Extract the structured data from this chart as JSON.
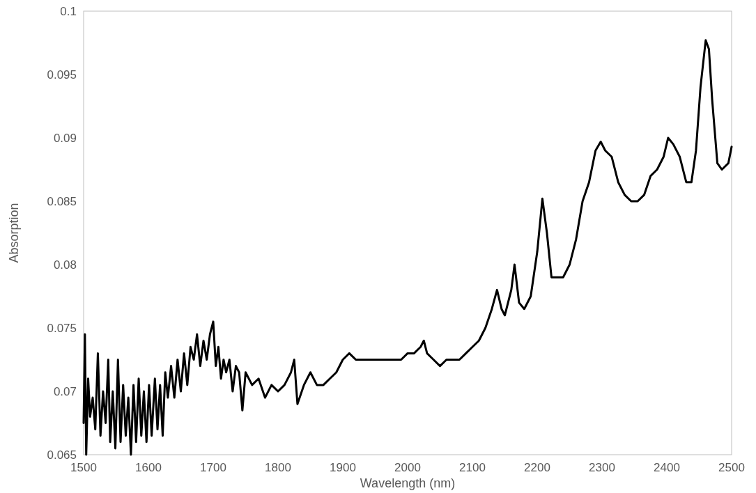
{
  "chart_data": {
    "type": "line",
    "xlabel": "Wavelength (nm)",
    "ylabel": "Absorption",
    "xlim": [
      1500,
      2500
    ],
    "xticks": [
      1500,
      1600,
      1700,
      1800,
      1900,
      2000,
      2100,
      2200,
      2300,
      2400,
      2500
    ],
    "ylim": [
      0.065,
      0.1
    ],
    "yticks": [
      0.065,
      0.07,
      0.075,
      0.08,
      0.085,
      0.09,
      0.095,
      0.1
    ],
    "marker": "none",
    "line_style": "solid",
    "x": [
      1500,
      1502,
      1504,
      1507,
      1510,
      1514,
      1518,
      1522,
      1526,
      1530,
      1534,
      1538,
      1541,
      1545,
      1549,
      1553,
      1557,
      1561,
      1565,
      1569,
      1573,
      1577,
      1581,
      1585,
      1589,
      1593,
      1597,
      1601,
      1605,
      1610,
      1614,
      1618,
      1622,
      1626,
      1630,
      1635,
      1640,
      1645,
      1650,
      1655,
      1660,
      1665,
      1670,
      1675,
      1680,
      1685,
      1690,
      1695,
      1700,
      1704,
      1708,
      1712,
      1716,
      1720,
      1725,
      1730,
      1735,
      1740,
      1745,
      1750,
      1760,
      1770,
      1780,
      1790,
      1800,
      1810,
      1820,
      1825,
      1830,
      1840,
      1850,
      1860,
      1870,
      1880,
      1890,
      1900,
      1910,
      1920,
      1930,
      1940,
      1950,
      1960,
      1970,
      1980,
      1990,
      2000,
      2010,
      2020,
      2025,
      2030,
      2040,
      2050,
      2060,
      2070,
      2080,
      2090,
      2100,
      2110,
      2120,
      2130,
      2138,
      2145,
      2150,
      2160,
      2165,
      2172,
      2180,
      2190,
      2200,
      2208,
      2215,
      2222,
      2230,
      2240,
      2250,
      2260,
      2270,
      2280,
      2290,
      2298,
      2305,
      2315,
      2325,
      2335,
      2345,
      2355,
      2365,
      2375,
      2385,
      2395,
      2402,
      2410,
      2420,
      2430,
      2438,
      2445,
      2452,
      2460,
      2465,
      2470,
      2478,
      2485,
      2495,
      2500
    ],
    "series": [
      {
        "color": "#000000",
        "values": [
          0.0675,
          0.0745,
          0.065,
          0.071,
          0.068,
          0.0695,
          0.067,
          0.073,
          0.0665,
          0.07,
          0.0675,
          0.0725,
          0.066,
          0.07,
          0.0655,
          0.0725,
          0.066,
          0.0705,
          0.0665,
          0.0695,
          0.065,
          0.0705,
          0.066,
          0.071,
          0.0665,
          0.07,
          0.066,
          0.0705,
          0.0665,
          0.071,
          0.067,
          0.0705,
          0.0665,
          0.0715,
          0.0695,
          0.072,
          0.0695,
          0.0725,
          0.07,
          0.073,
          0.0705,
          0.0735,
          0.0725,
          0.0745,
          0.072,
          0.074,
          0.0725,
          0.0745,
          0.0755,
          0.072,
          0.0735,
          0.071,
          0.0725,
          0.0715,
          0.0725,
          0.07,
          0.072,
          0.0715,
          0.0685,
          0.0715,
          0.0705,
          0.071,
          0.0695,
          0.0705,
          0.07,
          0.0705,
          0.0715,
          0.0725,
          0.069,
          0.0705,
          0.0715,
          0.0705,
          0.0705,
          0.071,
          0.0715,
          0.0725,
          0.073,
          0.0725,
          0.0725,
          0.0725,
          0.0725,
          0.0725,
          0.0725,
          0.0725,
          0.0725,
          0.073,
          0.073,
          0.0735,
          0.074,
          0.073,
          0.0725,
          0.072,
          0.0725,
          0.0725,
          0.0725,
          0.073,
          0.0735,
          0.074,
          0.075,
          0.0765,
          0.078,
          0.0765,
          0.076,
          0.078,
          0.08,
          0.077,
          0.0765,
          0.0775,
          0.081,
          0.0852,
          0.0825,
          0.079,
          0.079,
          0.079,
          0.08,
          0.082,
          0.085,
          0.0865,
          0.089,
          0.0897,
          0.089,
          0.0885,
          0.0865,
          0.0855,
          0.085,
          0.085,
          0.0855,
          0.087,
          0.0875,
          0.0885,
          0.09,
          0.0895,
          0.0885,
          0.0865,
          0.0865,
          0.089,
          0.094,
          0.0977,
          0.097,
          0.093,
          0.088,
          0.0875,
          0.088,
          0.0893
        ]
      }
    ]
  }
}
